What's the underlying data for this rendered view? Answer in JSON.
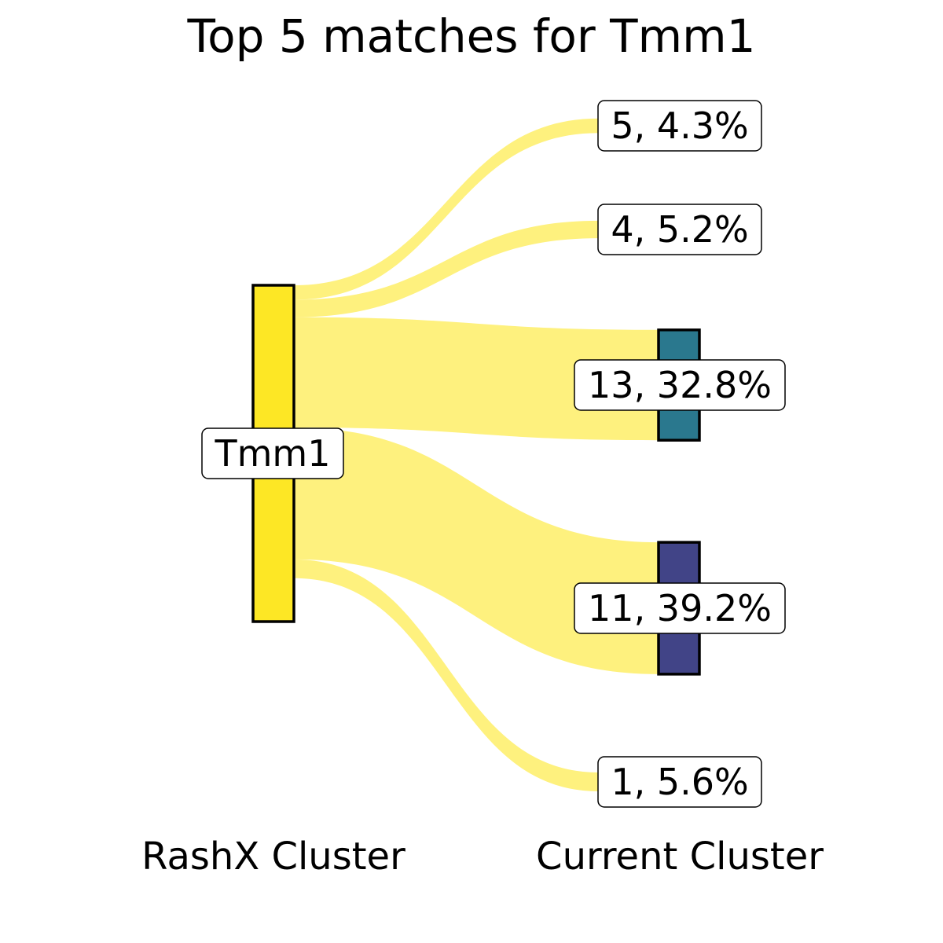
{
  "chart_data": {
    "type": "sankey",
    "title": "Top 5 matches for Tmm1",
    "axis_labels": {
      "left": "RashX Cluster",
      "right": "Current Cluster"
    },
    "source": {
      "label": "Tmm1",
      "color": "#fde725"
    },
    "flow_color": "#fef17e",
    "targets": [
      {
        "label": "5, 4.3%",
        "cluster": "5",
        "percent": 4.3,
        "box": false,
        "color": "#fde725"
      },
      {
        "label": "4, 5.2%",
        "cluster": "4",
        "percent": 5.2,
        "box": false,
        "color": "#fde725"
      },
      {
        "label": "13, 32.8%",
        "cluster": "13",
        "percent": 32.8,
        "box": true,
        "color": "#2a788e"
      },
      {
        "label": "11, 39.2%",
        "cluster": "11",
        "percent": 39.2,
        "box": true,
        "color": "#414487"
      },
      {
        "label": "1, 5.6%",
        "cluster": "1",
        "percent": 5.6,
        "box": false,
        "color": "#fde725"
      }
    ]
  }
}
